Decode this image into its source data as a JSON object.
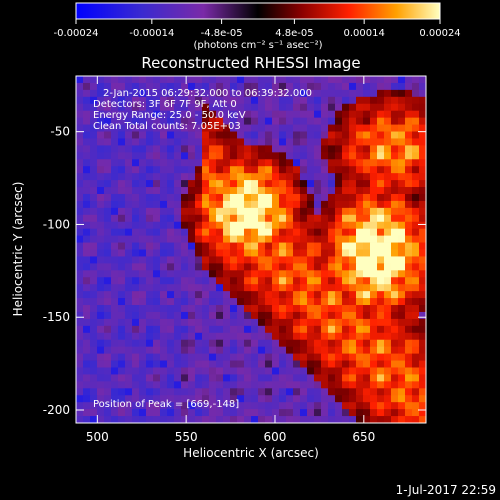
{
  "chart_data": {
    "type": "heatmap",
    "title": "Reconstructed RHESSI Image",
    "xlabel": "Heliocentric X (arcsec)",
    "ylabel": "Heliocentric Y (arcsec)",
    "xlim": [
      488,
      685
    ],
    "ylim": [
      -207,
      -20
    ],
    "xticks": [
      500,
      550,
      600,
      650
    ],
    "yticks": [
      -50,
      -100,
      -150,
      -200
    ],
    "colorbar": {
      "range": [
        -0.00024,
        0.00024
      ],
      "tick_values": [
        -0.00024,
        -0.00014,
        -4.8e-05,
        4.8e-05,
        0.00014,
        0.00024
      ],
      "tick_labels": [
        "-0.00024",
        "-0.00014",
        "-4.8e-05",
        "4.8e-05",
        "0.00014",
        "0.00024"
      ],
      "unit_label": "(photons cm⁻² s⁻¹ asec⁻²)"
    },
    "annotations": [
      "2-Jan-2015 06:29:32.000 to 06:39:32.000",
      "Detectors: 3F 6F 7F 9F, Att 0",
      "Energy Range: 25.0 - 50.0 keV",
      "Clean     Total counts: 7.05E+03"
    ],
    "peak_label": "Position of Peak = [669,-148]",
    "peak_position": [
      669,
      -148
    ],
    "grid": false
  },
  "footer": {
    "timestamp": "1-Jul-2017 22:59"
  }
}
